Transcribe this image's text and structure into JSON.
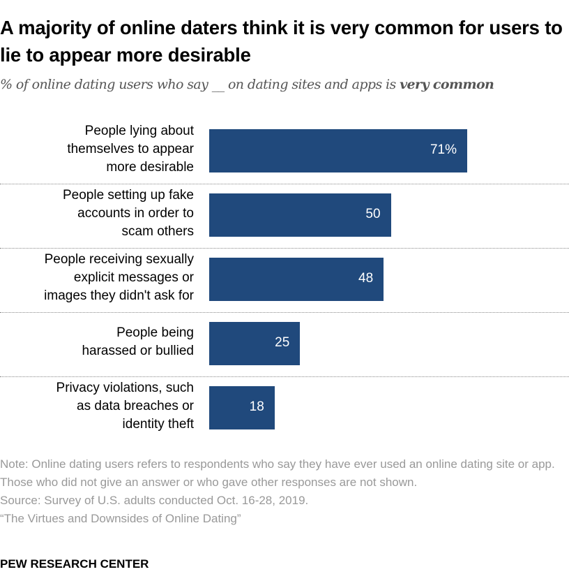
{
  "title": "A majority of online daters think it is very common for users to lie to appear more desirable",
  "subtitle_pre": "% of online dating users who say __ on dating sites and apps is ",
  "subtitle_bold": "very common",
  "chart_data": {
    "type": "bar",
    "orientation": "horizontal",
    "categories": [
      "People lying about themselves to appear more desirable",
      "People setting up fake accounts in order to scam others",
      "People receiving sexually explicit messages or images they didn't ask for",
      "People being harassed or bullied",
      "Privacy violations, such as data breaches or identity theft"
    ],
    "category_lines": [
      [
        "People lying about",
        "themselves to appear",
        "more desirable"
      ],
      [
        "People setting up fake",
        "accounts in order to",
        "scam others"
      ],
      [
        "People receiving sexually",
        "explicit messages or",
        "images they didn't ask for"
      ],
      [
        "People being",
        "harassed or bullied"
      ],
      [
        "Privacy violations, such",
        "as data breaches or",
        "identity theft"
      ]
    ],
    "values": [
      71,
      50,
      48,
      25,
      18
    ],
    "data_labels": [
      "71%",
      "50",
      "48",
      "25",
      "18"
    ],
    "bar_color": "#20497c",
    "xlim": [
      0,
      100
    ],
    "grid": false
  },
  "notes": [
    "Note: Online dating users refers to respondents who say they have ever used an online dating site or app. Those who did not give an answer or who gave other responses are not shown.",
    "Source: Survey of U.S. adults conducted Oct. 16-28, 2019.",
    "“The Virtues and Downsides of Online Dating”"
  ],
  "logo": "PEW RESEARCH CENTER"
}
